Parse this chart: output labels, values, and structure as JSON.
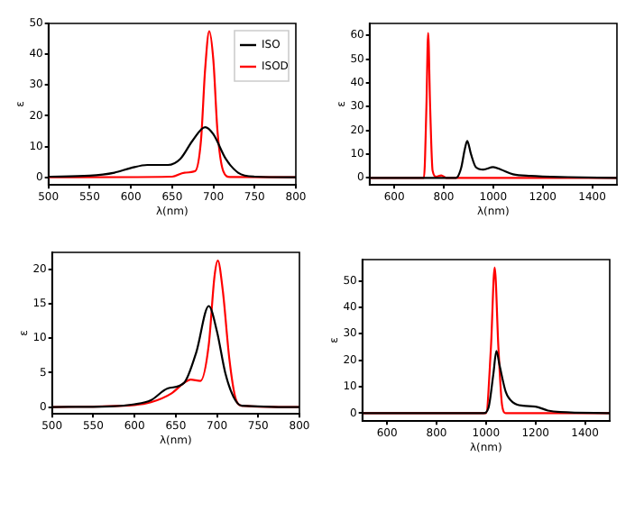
{
  "chart_data": [
    {
      "type": "line",
      "xlabel": "λ(nm)",
      "ylabel": "ε",
      "xlim": [
        500,
        800
      ],
      "xticks": [
        500,
        550,
        600,
        650,
        700,
        750,
        800
      ],
      "ylim": [
        -2.5,
        50
      ],
      "yticks": [
        0,
        10,
        20,
        30,
        40,
        50
      ],
      "legend": "top right",
      "grid": false,
      "series": [
        {
          "name": "ISO",
          "color": "#000000",
          "x": [
            500,
            550,
            580,
            600,
            620,
            645,
            660,
            675,
            690,
            700,
            715,
            730,
            750,
            800
          ],
          "values": [
            0.2,
            0.5,
            1.5,
            3,
            4,
            4,
            6,
            12,
            16.3,
            14,
            6,
            1.5,
            0.2,
            0
          ]
        },
        {
          "name": "ISOD",
          "color": "#ff0000",
          "x": [
            500,
            650,
            665,
            678,
            685,
            690,
            695,
            700,
            705,
            712,
            720,
            800
          ],
          "values": [
            0,
            0.2,
            1.5,
            2,
            12,
            35,
            47.5,
            38,
            15,
            2,
            0.1,
            0
          ]
        }
      ]
    },
    {
      "type": "line",
      "xlabel": "λ(nm)",
      "ylabel": "ε",
      "xlim": [
        500,
        1500
      ],
      "xticks": [
        600,
        800,
        1000,
        1200,
        1400
      ],
      "ylim": [
        -3,
        65
      ],
      "yticks": [
        0,
        10,
        20,
        30,
        40,
        50,
        60
      ],
      "grid": false,
      "series": [
        {
          "color": "#000000",
          "x": [
            500,
            850,
            870,
            885,
            895,
            910,
            930,
            960,
            1000,
            1030,
            1080,
            1150,
            1300,
            1500
          ],
          "values": [
            0,
            0,
            4,
            12,
            15.5,
            10,
            4.5,
            3.5,
            4.5,
            3.5,
            1.5,
            0.8,
            0.3,
            0
          ]
        },
        {
          "color": "#ff0000",
          "x": [
            500,
            720,
            730,
            737,
            745,
            755,
            770,
            790,
            810,
            1500
          ],
          "values": [
            0,
            0,
            30,
            61,
            30,
            3,
            0.5,
            1,
            0,
            0
          ]
        }
      ]
    },
    {
      "type": "line",
      "xlabel": "λ(nm)",
      "ylabel": "ε",
      "xlim": [
        500,
        800
      ],
      "xticks": [
        500,
        550,
        600,
        650,
        700,
        750,
        800
      ],
      "ylim": [
        -1,
        22.5
      ],
      "yticks": [
        0,
        5,
        10,
        15,
        20
      ],
      "grid": false,
      "series": [
        {
          "color": "#000000",
          "x": [
            500,
            570,
            600,
            620,
            640,
            660,
            675,
            690,
            700,
            710,
            720,
            730,
            800
          ],
          "values": [
            0,
            0.1,
            0.4,
            1,
            2.7,
            3.5,
            8,
            14.7,
            11,
            5,
            1.5,
            0.2,
            0
          ]
        },
        {
          "color": "#ff0000",
          "x": [
            500,
            600,
            620,
            645,
            660,
            668,
            680,
            690,
            697,
            701,
            707,
            715,
            722,
            730,
            800
          ],
          "values": [
            0,
            0.3,
            0.7,
            2,
            3.5,
            4,
            3.8,
            9,
            19,
            21.3,
            17,
            7,
            1.5,
            0.2,
            0
          ]
        }
      ]
    },
    {
      "type": "line",
      "xlabel": "λ(nm)",
      "ylabel": "ε",
      "xlim": [
        500,
        1500
      ],
      "xticks": [
        600,
        800,
        1000,
        1200,
        1400
      ],
      "ylim": [
        -3,
        58
      ],
      "yticks": [
        0,
        10,
        20,
        30,
        40,
        50
      ],
      "grid": false,
      "series": [
        {
          "color": "#000000",
          "x": [
            500,
            990,
            1010,
            1030,
            1042,
            1055,
            1080,
            1110,
            1150,
            1200,
            1250,
            1300,
            1500
          ],
          "values": [
            0,
            0,
            2,
            15,
            23.5,
            18,
            8,
            4,
            2.8,
            2.5,
            1,
            0.4,
            0
          ]
        },
        {
          "color": "#ff0000",
          "x": [
            500,
            1000,
            1020,
            1035,
            1050,
            1065,
            1080,
            1500
          ],
          "values": [
            0,
            0,
            25,
            55,
            25,
            3,
            0,
            0
          ]
        }
      ]
    }
  ]
}
